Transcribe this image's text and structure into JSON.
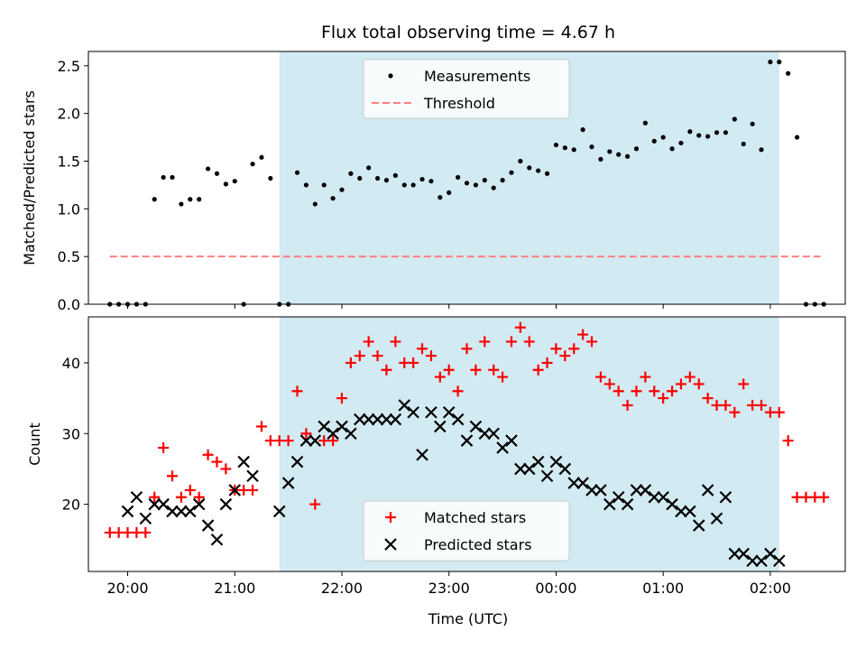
{
  "title": "Flux total observing time = 4.67 h",
  "chart_data": [
    {
      "type": "scatter",
      "ylabel": "Matched/Predicted stars",
      "ylim": [
        0,
        2.65
      ],
      "yticks": [
        0,
        0.5,
        1.0,
        1.5,
        2.0,
        2.5
      ],
      "ytick_labels": [
        "0.0",
        "0.5",
        "1.0",
        "1.5",
        "2.0",
        "2.5"
      ],
      "xlim": [
        "19:38",
        "02:42"
      ],
      "observing_window": {
        "start": "21:25",
        "end": "02:05",
        "color": "#add8e6"
      },
      "legend": {
        "placement": "top-center",
        "entries": [
          "Measurements",
          "Threshold"
        ]
      },
      "threshold": {
        "name": "Threshold",
        "value": 0.5,
        "x_start": "19:50",
        "x_end": "02:30",
        "color": "#ff7f7f",
        "style": "dashed"
      },
      "series": [
        {
          "name": "Measurements",
          "color": "#000000",
          "x": [
            "19:50",
            "19:55",
            "20:00",
            "20:05",
            "20:10",
            "20:15",
            "20:20",
            "20:25",
            "20:30",
            "20:35",
            "20:40",
            "20:45",
            "20:50",
            "20:55",
            "21:00",
            "21:05",
            "21:10",
            "21:15",
            "21:20",
            "21:25",
            "21:30",
            "21:35",
            "21:40",
            "21:45",
            "21:50",
            "21:55",
            "22:00",
            "22:05",
            "22:10",
            "22:15",
            "22:20",
            "22:25",
            "22:30",
            "22:35",
            "22:40",
            "22:45",
            "22:50",
            "22:55",
            "23:00",
            "23:05",
            "23:10",
            "23:15",
            "23:20",
            "23:25",
            "23:30",
            "23:35",
            "23:40",
            "23:45",
            "23:50",
            "23:55",
            "00:00",
            "00:05",
            "00:10",
            "00:15",
            "00:20",
            "00:25",
            "00:30",
            "00:35",
            "00:40",
            "00:45",
            "00:50",
            "00:55",
            "01:00",
            "01:05",
            "01:10",
            "01:15",
            "01:20",
            "01:25",
            "01:30",
            "01:35",
            "01:40",
            "01:45",
            "01:50",
            "01:55",
            "02:00",
            "02:05",
            "02:10",
            "02:15",
            "02:20",
            "02:25",
            "02:30"
          ],
          "y": [
            0,
            0,
            0,
            0,
            0,
            1.1,
            1.33,
            1.33,
            1.05,
            1.1,
            1.1,
            1.42,
            1.37,
            1.26,
            1.29,
            0,
            1.47,
            1.54,
            1.32,
            0,
            0,
            1.38,
            1.25,
            1.05,
            1.25,
            1.11,
            1.2,
            1.37,
            1.32,
            1.43,
            1.32,
            1.3,
            1.35,
            1.25,
            1.25,
            1.31,
            1.29,
            1.12,
            1.17,
            1.33,
            1.27,
            1.25,
            1.3,
            1.22,
            1.3,
            1.38,
            1.5,
            1.43,
            1.4,
            1.37,
            1.67,
            1.64,
            1.62,
            1.83,
            1.65,
            1.52,
            1.6,
            1.57,
            1.55,
            1.63,
            1.9,
            1.71,
            1.75,
            1.63,
            1.69,
            1.81,
            1.77,
            1.76,
            1.8,
            1.8,
            1.94,
            1.68,
            1.89,
            1.62,
            2.54,
            2.54,
            2.42,
            1.75,
            0,
            0,
            0
          ]
        }
      ]
    },
    {
      "type": "scatter",
      "xlabel": "Time (UTC)",
      "ylabel": "Count",
      "ylim": [
        10.5,
        46.5
      ],
      "yticks": [
        20,
        30,
        40
      ],
      "ytick_labels": [
        "20",
        "30",
        "40"
      ],
      "xlim": [
        "19:38",
        "02:42"
      ],
      "xticks": [
        "20:00",
        "21:00",
        "22:00",
        "23:00",
        "00:00",
        "01:00",
        "02:00"
      ],
      "observing_window": {
        "start": "21:25",
        "end": "02:05",
        "color": "#add8e6"
      },
      "legend": {
        "placement": "bottom-center",
        "entries": [
          "Matched stars",
          "Predicted stars"
        ]
      },
      "series": [
        {
          "name": "Matched stars",
          "marker": "plus",
          "color": "#ff0000",
          "x": [
            "19:50",
            "19:55",
            "20:00",
            "20:05",
            "20:10",
            "20:15",
            "20:20",
            "20:25",
            "20:30",
            "20:35",
            "20:40",
            "20:45",
            "20:50",
            "20:55",
            "21:00",
            "21:05",
            "21:10",
            "21:15",
            "21:20",
            "21:25",
            "21:30",
            "21:35",
            "21:40",
            "21:45",
            "21:50",
            "21:55",
            "22:00",
            "22:05",
            "22:10",
            "22:15",
            "22:20",
            "22:25",
            "22:30",
            "22:35",
            "22:40",
            "22:45",
            "22:50",
            "22:55",
            "23:00",
            "23:05",
            "23:10",
            "23:15",
            "23:20",
            "23:25",
            "23:30",
            "23:35",
            "23:40",
            "23:45",
            "23:50",
            "23:55",
            "00:00",
            "00:05",
            "00:10",
            "00:15",
            "00:20",
            "00:25",
            "00:30",
            "00:35",
            "00:40",
            "00:45",
            "00:50",
            "00:55",
            "01:00",
            "01:05",
            "01:10",
            "01:15",
            "01:20",
            "01:25",
            "01:30",
            "01:35",
            "01:40",
            "01:45",
            "01:50",
            "01:55",
            "02:00",
            "02:05",
            "02:10",
            "02:15",
            "02:20",
            "02:25",
            "02:30"
          ],
          "y": [
            16,
            16,
            16,
            16,
            16,
            21,
            28,
            24,
            21,
            22,
            21,
            27,
            26,
            25,
            22,
            22,
            22,
            31,
            29,
            29,
            29,
            36,
            30,
            20,
            29,
            29,
            35,
            40,
            41,
            43,
            41,
            39,
            43,
            40,
            40,
            42,
            41,
            38,
            39,
            36,
            42,
            39,
            43,
            39,
            38,
            43,
            45,
            43,
            39,
            40,
            42,
            41,
            42,
            44,
            43,
            38,
            37,
            36,
            34,
            36,
            38,
            36,
            35,
            36,
            37,
            38,
            37,
            35,
            34,
            34,
            33,
            37,
            34,
            34,
            33,
            33,
            29,
            21,
            21,
            21,
            21
          ]
        },
        {
          "name": "Predicted stars",
          "marker": "x",
          "color": "#000000",
          "x": [
            "20:00",
            "20:05",
            "20:10",
            "20:15",
            "20:20",
            "20:25",
            "20:30",
            "20:35",
            "20:40",
            "20:45",
            "20:50",
            "20:55",
            "21:00",
            "21:05",
            "21:10",
            "21:25",
            "21:30",
            "21:35",
            "21:40",
            "21:45",
            "21:50",
            "21:55",
            "22:00",
            "22:05",
            "22:10",
            "22:15",
            "22:20",
            "22:25",
            "22:30",
            "22:35",
            "22:40",
            "22:45",
            "22:50",
            "22:55",
            "23:00",
            "23:05",
            "23:10",
            "23:15",
            "23:20",
            "23:25",
            "23:30",
            "23:35",
            "23:40",
            "23:45",
            "23:50",
            "23:55",
            "00:00",
            "00:05",
            "00:10",
            "00:15",
            "00:20",
            "00:25",
            "00:30",
            "00:35",
            "00:40",
            "00:45",
            "00:50",
            "00:55",
            "01:00",
            "01:05",
            "01:10",
            "01:15",
            "01:20",
            "01:25",
            "01:30",
            "01:35",
            "01:40",
            "01:45",
            "01:50",
            "01:55",
            "02:00",
            "02:05"
          ],
          "y": [
            19,
            21,
            18,
            20,
            20,
            19,
            19,
            19,
            20,
            17,
            15,
            20,
            22,
            26,
            24,
            19,
            23,
            26,
            29,
            29,
            31,
            30,
            31,
            30,
            32,
            32,
            32,
            32,
            32,
            34,
            33,
            27,
            33,
            31,
            33,
            32,
            29,
            31,
            30,
            30,
            28,
            29,
            25,
            25,
            26,
            24,
            26,
            25,
            23,
            23,
            22,
            22,
            20,
            21,
            20,
            22,
            22,
            21,
            21,
            20,
            19,
            19,
            17,
            22,
            18,
            21,
            13,
            13,
            12,
            12,
            13,
            12
          ]
        }
      ]
    }
  ]
}
